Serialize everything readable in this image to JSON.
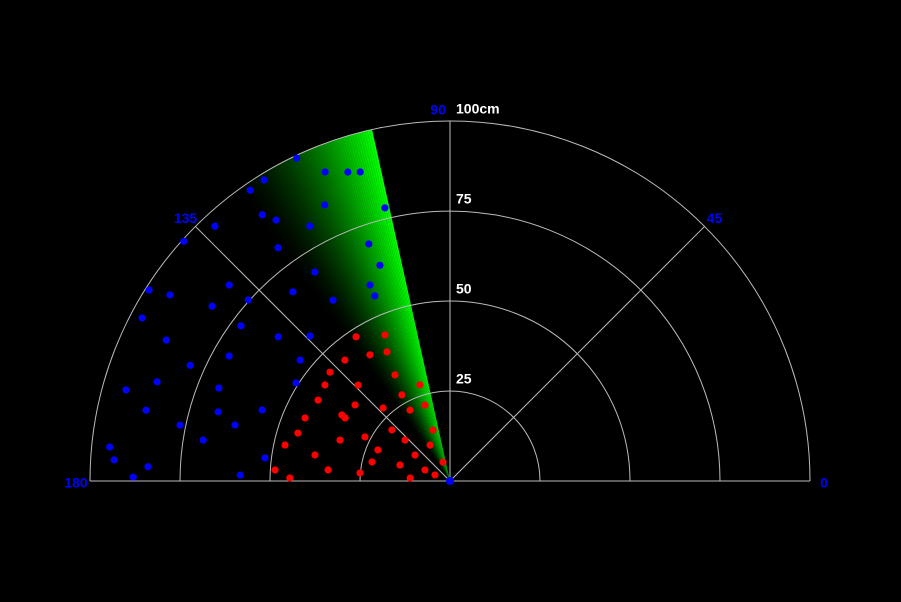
{
  "chart_data": {
    "type": "polar_scatter",
    "rlim": [
      0,
      100
    ],
    "rticks": [
      25,
      50,
      75,
      {
        "value": 100,
        "label": "100cm"
      }
    ],
    "thetalim": [
      0,
      180
    ],
    "thetaticks": [
      0,
      45,
      90,
      135,
      180
    ],
    "sweep_angle": 102.5,
    "sweep_width": 24,
    "sweep_color": "#00ff00",
    "grid": true,
    "series": [
      {
        "color": "#0000ff",
        "x": [
          115.4,
          112,
          108.3,
          106.2,
          121.7,
          124.5,
          125.2,
          132.7,
          138,
          103.4,
          118.8,
          126.4,
          108.9,
          122.9,
          138.4,
          147.6,
          146.4,
          143.7,
          152.1,
          138.1,
          129.7,
          112.1,
          122.9,
          153.6,
          143.4,
          140,
          134,
          156,
          164.3,
          161.3,
          158.1,
          159.3,
          168.3,
          174.3,
          177.3,
          179.3,
          178.4,
          165.4,
          170.6,
          172.9,
          147.5,
          108,
          112.2,
          114.4,
          166.9,
          150.5,
          141.1,
          163.4,
          176.4,
          123.7
        ],
        "values": [
          99.3,
          92.6,
          90.4,
          89.4,
          98.3,
          98,
          90.5,
          96.3,
          99.5,
          78,
          80.8,
          80.5,
          69.6,
          69.1,
          82,
          99,
          93.4,
          82,
          96.8,
          75.3,
          68.3,
          55.5,
          59.8,
          88,
          72.3,
          62.3,
          56,
          79,
          93.5,
          85.9,
          69.2,
          55.8,
          76.6,
          95,
          84,
          88,
          58.3,
          61.7,
          69.5,
          51.8,
          50.7,
          63,
          58.8,
          84.2,
          86.7,
          70.5,
          53.5,
          67.2,
          93.5,
          87.1
        ]
      },
      {
        "color": "#ff0000",
        "x": [
          123.1,
          114,
          122.4,
          131,
          137.8,
          117.4,
          107.4,
          148.5,
          141.3,
          132.5,
          119.4,
          162.5,
          159.6,
          152.6,
          137.7,
          119,
          167.7,
          174.8,
          174.9,
          162.3,
          156.3,
          178.9,
          175.7,
          156.5,
          149,
          156.7,
          142.5,
          133.8,
          119.2,
          108.2,
          108.4,
          110.2,
          158,
          138.7,
          176.4,
          169.1,
          166.3,
          143.4,
          116,
          148.6
        ],
        "values": [
          47.8,
          44.4,
          41.5,
          44.5,
          45,
          33.2,
          28,
          43,
          33.8,
          27.5,
          22.6,
          44.3,
          32.6,
          26.6,
          16.9,
          11.4,
          46.9,
          34,
          25.1,
          14.6,
          7.6,
          44.5,
          11.1,
          43.9,
          34,
          21.8,
          43.8,
          36.9,
          27.4,
          22.2,
          14.9,
          5.6,
          4.5,
          21.5,
          48.7,
          38.2,
          22.3,
          12.1,
          39.9,
          35.2
        ]
      }
    ]
  }
}
